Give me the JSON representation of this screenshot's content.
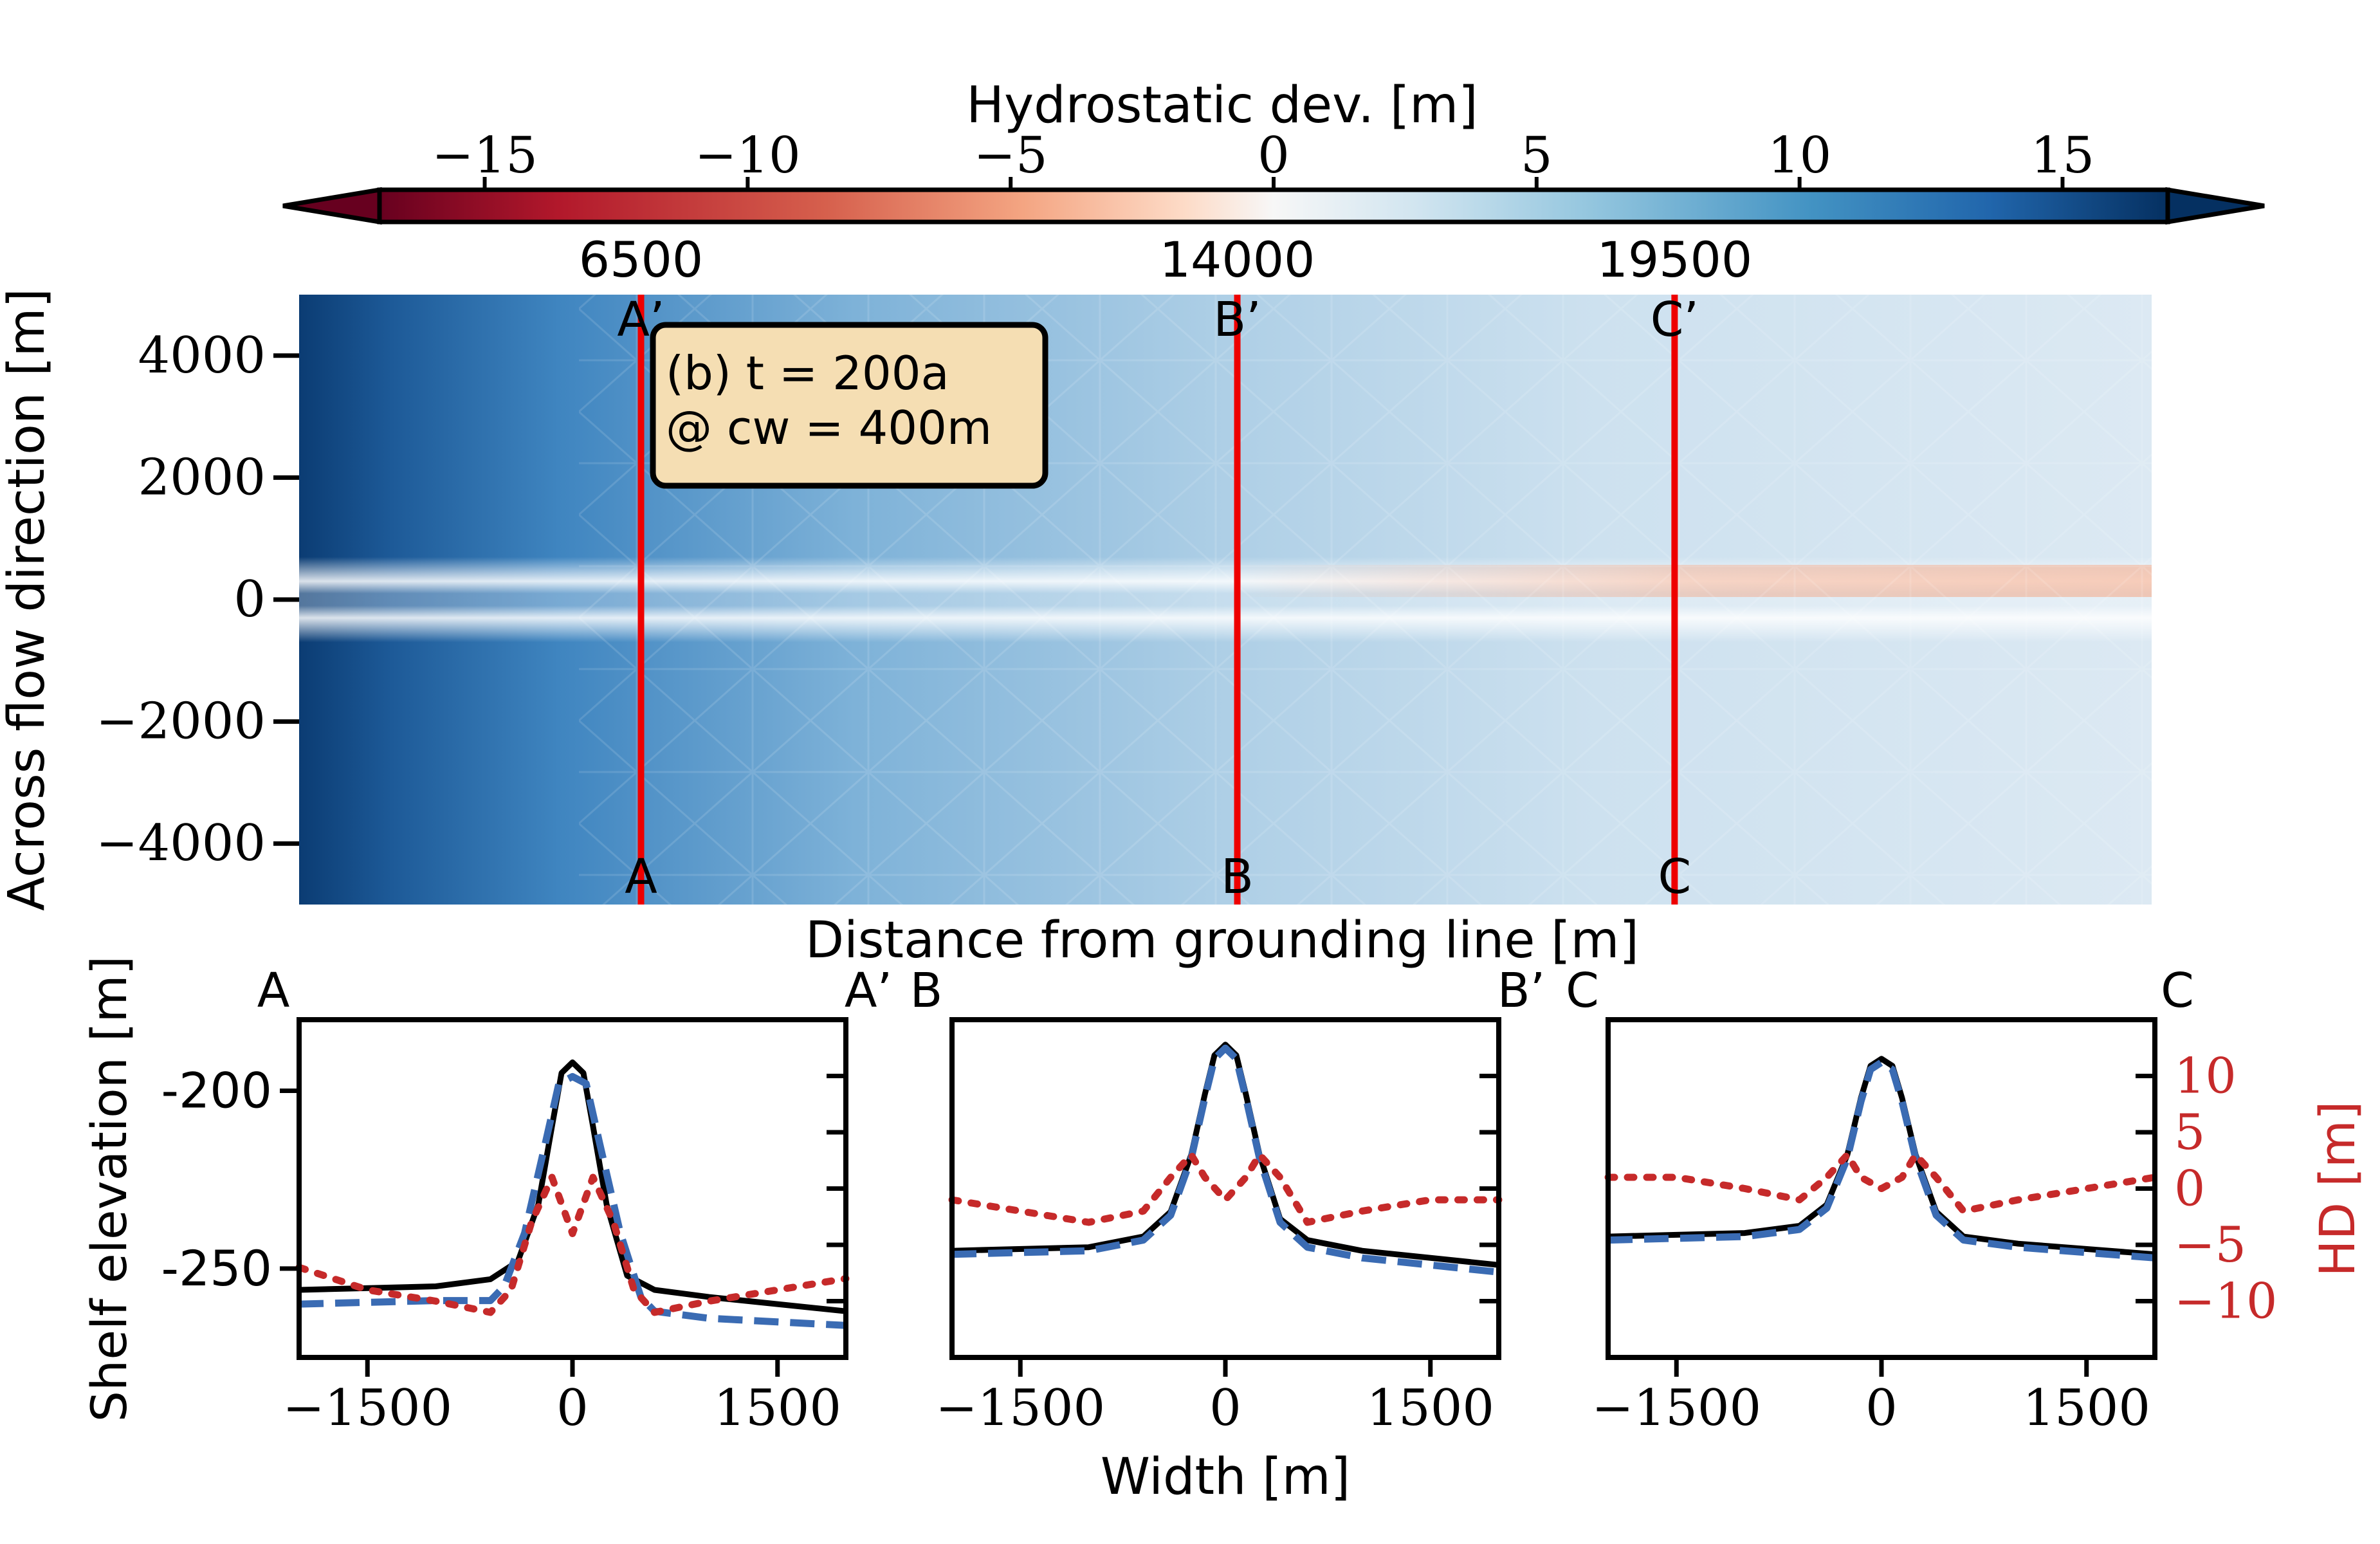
{
  "colors": {
    "profile_line": "#ee0000",
    "surface": "#000000",
    "hydrostatic": "#3a6bb3",
    "hd_series": "#c62a2a",
    "annotation_fill": "#f5deb3",
    "hd_axis": "#c62a2a"
  },
  "chart_data": [
    {
      "type": "heatmap",
      "colorbar": {
        "label": "Hydrostatic dev. [m]",
        "range": [
          -17,
          17
        ],
        "ticks": [
          -15,
          -10,
          -5,
          0,
          5,
          10,
          15
        ],
        "tick_labels": [
          "−15",
          "−10",
          "−5",
          "0",
          "5",
          "10",
          "15"
        ],
        "cmap": "RdBu",
        "extend": "both"
      },
      "xlabel": "Distance from grounding line [m]",
      "ylabel": "Across flow direction [m]",
      "xlim": [
        2200,
        25500
      ],
      "ylim": [
        -5000,
        5000
      ],
      "yticks": [
        4000,
        2000,
        0,
        -2000,
        -4000
      ],
      "ytick_labels": [
        "4000",
        "2000",
        "0",
        "−2000",
        "−4000"
      ],
      "profiles": [
        {
          "x": 6500,
          "label": "6500",
          "top": "A’",
          "bottom": "A"
        },
        {
          "x": 14000,
          "label": "14000",
          "top": "B’",
          "bottom": "B"
        },
        {
          "x": 19500,
          "label": "19500",
          "top": "C’",
          "bottom": "C"
        }
      ],
      "annotation": [
        "(b) t = 200a",
        "@ cw = 400m"
      ],
      "grid": false
    },
    {
      "type": "line",
      "panel": "A",
      "corner_left": "A",
      "corner_right": "A’",
      "xlim": [
        -2000,
        2000
      ],
      "ylim": [
        -275,
        -180
      ],
      "xticks": [
        -1500,
        0,
        1500
      ],
      "xtick_labels": [
        "−1500",
        "0",
        "1500"
      ],
      "yticks": [
        -200,
        -250
      ],
      "ytick_labels": [
        "-200",
        "-250"
      ],
      "ylabel": "Shelf elevation [m]",
      "hd_ylim": [
        -15,
        15
      ],
      "series": [
        {
          "role": "surface",
          "style": "solid",
          "x": [
            -2000,
            -1000,
            -600,
            -400,
            -250,
            -150,
            -80,
            0,
            80,
            150,
            250,
            400,
            600,
            1000,
            2000
          ],
          "y": [
            -256,
            -255,
            -253,
            -248,
            -232,
            -210,
            -195,
            -192,
            -195,
            -210,
            -232,
            -252,
            -256,
            -258,
            -262
          ]
        },
        {
          "role": "hydrostatic",
          "style": "dashed",
          "x": [
            -2000,
            -1000,
            -600,
            -500,
            -350,
            -200,
            -100,
            0,
            100,
            200,
            350,
            500,
            600,
            1000,
            2000
          ],
          "y": [
            -260,
            -259,
            -259,
            -255,
            -240,
            -215,
            -198,
            -196,
            -198,
            -215,
            -240,
            -258,
            -262,
            -264,
            -266
          ]
        },
        {
          "role": "hd",
          "style": "dotted",
          "axis": "right",
          "x": [
            -2000,
            -1500,
            -1000,
            -600,
            -450,
            -300,
            -150,
            0,
            150,
            300,
            450,
            600,
            1000,
            1500,
            2000
          ],
          "y": [
            -7,
            -9,
            -10,
            -11,
            -9,
            -3,
            1,
            -4,
            1,
            -3,
            -9,
            -11,
            -10,
            -9,
            -8
          ]
        }
      ]
    },
    {
      "type": "line",
      "panel": "B",
      "corner_left": "B",
      "corner_right": "B’",
      "xlim": [
        -2000,
        2000
      ],
      "ylim": [
        -275,
        -180
      ],
      "xticks": [
        -1500,
        0,
        1500
      ],
      "xtick_labels": [
        "−1500",
        "0",
        "1500"
      ],
      "xlabel": "Width [m]",
      "hd_ylim": [
        -15,
        15
      ],
      "series": [
        {
          "role": "surface",
          "style": "solid",
          "x": [
            -2000,
            -1000,
            -600,
            -400,
            -250,
            -150,
            -80,
            0,
            80,
            150,
            250,
            400,
            600,
            1000,
            2000
          ],
          "y": [
            -245,
            -244,
            -241,
            -234,
            -218,
            -201,
            -190,
            -187,
            -190,
            -201,
            -218,
            -236,
            -242,
            -245,
            -249
          ]
        },
        {
          "role": "hydrostatic",
          "style": "dashed",
          "x": [
            -2000,
            -1000,
            -600,
            -400,
            -250,
            -150,
            -80,
            0,
            80,
            150,
            250,
            400,
            600,
            1000,
            2000
          ],
          "y": [
            -246,
            -245,
            -242,
            -235,
            -219,
            -202,
            -191,
            -188,
            -191,
            -202,
            -219,
            -237,
            -244,
            -247,
            -251
          ]
        },
        {
          "role": "hd",
          "style": "dotted",
          "axis": "right",
          "x": [
            -2000,
            -1500,
            -1000,
            -600,
            -400,
            -250,
            -150,
            0,
            150,
            250,
            400,
            600,
            1000,
            1500,
            2000
          ],
          "y": [
            -1,
            -2,
            -3,
            -2,
            1,
            3,
            1,
            -1,
            1,
            3,
            1,
            -3,
            -2,
            -1,
            -1
          ]
        }
      ]
    },
    {
      "type": "line",
      "panel": "C",
      "corner_left": "C",
      "corner_right": "C",
      "xlim": [
        -2000,
        2000
      ],
      "ylim": [
        -275,
        -180
      ],
      "xticks": [
        -1500,
        0,
        1500
      ],
      "xtick_labels": [
        "−1500",
        "0",
        "1500"
      ],
      "hd_ylabel": "HD [m]",
      "hd_ylim": [
        -15,
        15
      ],
      "hd_ticks": [
        10,
        5,
        0,
        -5,
        -10
      ],
      "hd_tick_labels": [
        "10",
        "5",
        "0",
        "−5",
        "−10"
      ],
      "series": [
        {
          "role": "surface",
          "style": "solid",
          "x": [
            -2000,
            -1000,
            -600,
            -400,
            -250,
            -150,
            -80,
            0,
            80,
            150,
            250,
            400,
            600,
            1000,
            2000
          ],
          "y": [
            -241,
            -240,
            -238,
            -232,
            -218,
            -202,
            -193,
            -191,
            -193,
            -202,
            -218,
            -234,
            -241,
            -243,
            -246
          ]
        },
        {
          "role": "hydrostatic",
          "style": "dashed",
          "x": [
            -2000,
            -1000,
            -600,
            -400,
            -250,
            -150,
            -80,
            0,
            80,
            150,
            250,
            400,
            600,
            1000,
            2000
          ],
          "y": [
            -242,
            -241,
            -239,
            -233,
            -219,
            -203,
            -194,
            -192,
            -194,
            -203,
            -219,
            -235,
            -242,
            -244,
            -247
          ]
        },
        {
          "role": "hd",
          "style": "dotted",
          "axis": "right",
          "x": [
            -2000,
            -1500,
            -1000,
            -600,
            -400,
            -250,
            -150,
            0,
            150,
            250,
            400,
            600,
            1000,
            1500,
            2000
          ],
          "y": [
            1,
            1,
            0,
            -1,
            1,
            3,
            1,
            0,
            1,
            3,
            1,
            -2,
            -1,
            0,
            1
          ]
        }
      ]
    }
  ]
}
